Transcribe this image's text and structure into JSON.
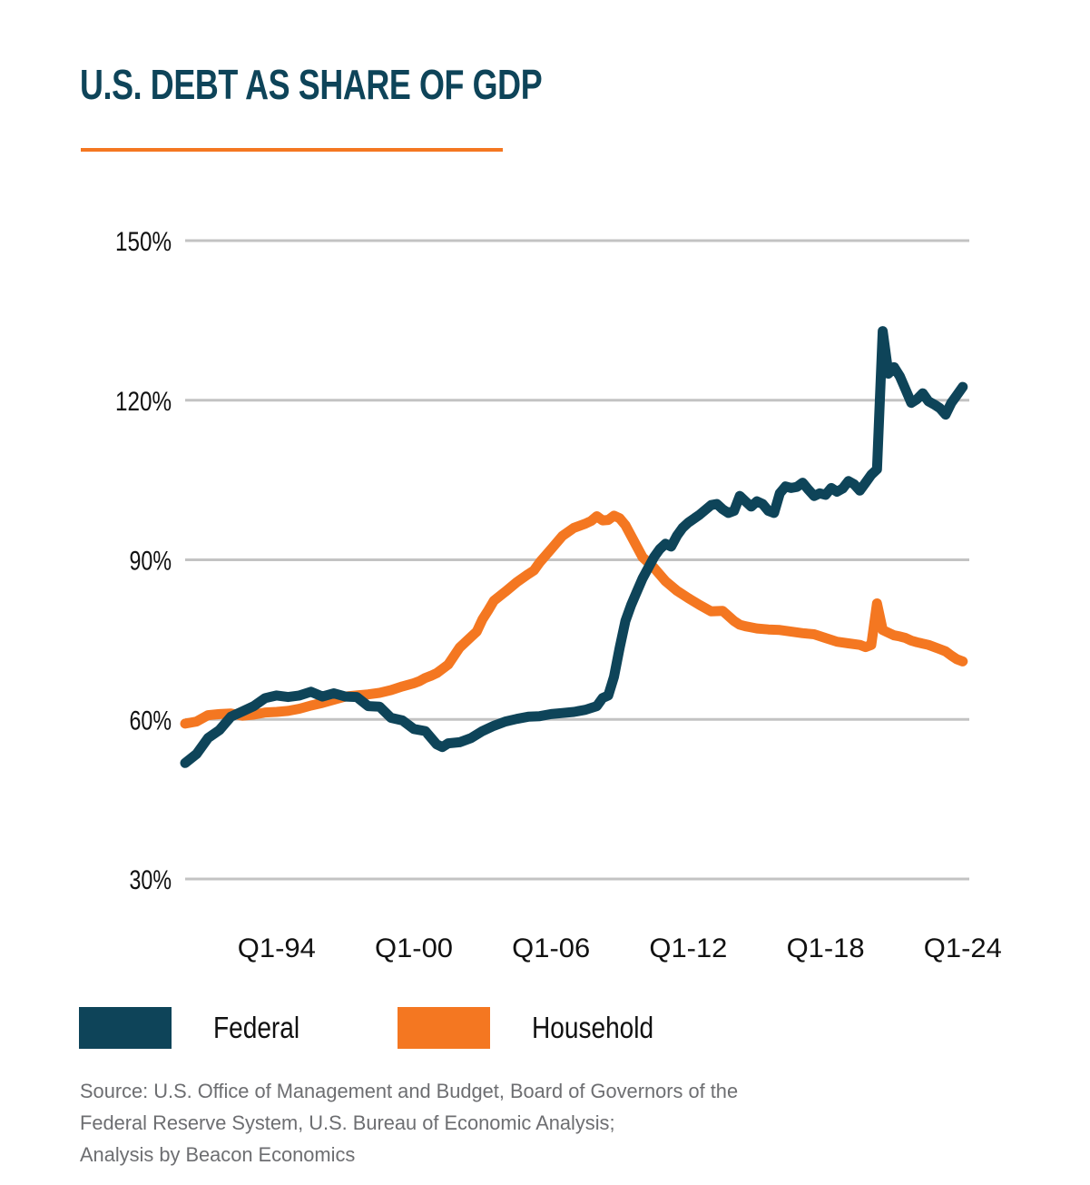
{
  "title": "U.S. DEBT AS SHARE OF GDP",
  "colors": {
    "federal": "#0e4459",
    "household": "#f47721",
    "title": "#0e4459",
    "rule": "#f47721",
    "grid": "#c3c3c3",
    "source_text": "#6d6e71"
  },
  "legend": [
    {
      "label": "Federal",
      "color": "#0e4459"
    },
    {
      "label": "Household",
      "color": "#f47721"
    }
  ],
  "source_lines": [
    "Source: U.S. Office of Management and Budget, Board of Governors of the",
    "Federal Reserve System, U.S. Bureau of Economic Analysis;",
    "Analysis by Beacon Economics"
  ],
  "chart_data": {
    "type": "line",
    "title": "U.S. DEBT AS SHARE OF GDP",
    "xlabel": "",
    "ylabel": "",
    "x_unit": "year (decimal, quarterly)",
    "xlim": [
      1990.0,
      2024.25
    ],
    "ylim": [
      30,
      150
    ],
    "y_ticks": [
      30,
      60,
      90,
      120,
      150
    ],
    "y_tick_labels": [
      "30%",
      "60%",
      "90%",
      "120%",
      "150%"
    ],
    "x_ticks": [
      1994,
      2000,
      2006,
      2012,
      2018,
      2024
    ],
    "x_tick_labels": [
      "Q1-94",
      "Q1-00",
      "Q1-06",
      "Q1-12",
      "Q1-18",
      "Q1-24"
    ],
    "grid": "horizontal",
    "legend_position": "bottom-left",
    "series": [
      {
        "name": "Federal",
        "color": "#0e4459",
        "x": [
          1990.0,
          1990.5,
          1991.0,
          1991.5,
          1992.0,
          1992.5,
          1993.0,
          1993.5,
          1994.0,
          1994.5,
          1995.0,
          1995.5,
          1996.0,
          1996.5,
          1997.0,
          1997.5,
          1998.0,
          1998.5,
          1999.0,
          1999.5,
          2000.0,
          2000.5,
          2001.0,
          2001.25,
          2001.5,
          2002.0,
          2002.5,
          2003.0,
          2003.5,
          2004.0,
          2004.5,
          2005.0,
          2005.5,
          2006.0,
          2006.5,
          2007.0,
          2007.5,
          2008.0,
          2008.25,
          2008.5,
          2008.75,
          2009.0,
          2009.25,
          2009.5,
          2009.75,
          2010.0,
          2010.25,
          2010.5,
          2010.75,
          2011.0,
          2011.25,
          2011.5,
          2011.75,
          2012.0,
          2012.5,
          2013.0,
          2013.25,
          2013.5,
          2013.75,
          2014.0,
          2014.25,
          2014.5,
          2014.75,
          2015.0,
          2015.25,
          2015.5,
          2015.75,
          2016.0,
          2016.25,
          2016.5,
          2016.75,
          2017.0,
          2017.25,
          2017.5,
          2017.75,
          2018.0,
          2018.25,
          2018.5,
          2018.75,
          2019.0,
          2019.25,
          2019.5,
          2019.75,
          2020.0,
          2020.25,
          2020.5,
          2020.75,
          2021.0,
          2021.25,
          2021.5,
          2021.75,
          2022.0,
          2022.25,
          2022.5,
          2022.75,
          2023.0,
          2023.25,
          2023.5,
          2023.75,
          2024.0
        ],
        "values": [
          51.8,
          53.5,
          56.5,
          58.0,
          60.5,
          61.5,
          62.5,
          64.0,
          64.5,
          64.2,
          64.5,
          65.2,
          64.3,
          64.9,
          64.3,
          64.2,
          62.5,
          62.4,
          60.3,
          59.8,
          58.2,
          57.8,
          55.3,
          54.8,
          55.5,
          55.7,
          56.5,
          57.8,
          58.8,
          59.6,
          60.1,
          60.5,
          60.6,
          61.0,
          61.2,
          61.4,
          61.8,
          62.5,
          64.0,
          64.5,
          68.0,
          73.5,
          78.5,
          81.5,
          84.0,
          86.5,
          88.5,
          90.5,
          92.0,
          93.0,
          92.5,
          94.5,
          96.0,
          97.0,
          98.5,
          100.3,
          100.5,
          99.5,
          98.8,
          99.2,
          102.0,
          101.0,
          100.0,
          101.0,
          100.5,
          99.2,
          98.8,
          102.5,
          103.8,
          103.5,
          103.7,
          104.5,
          103.2,
          102.0,
          102.5,
          102.2,
          103.5,
          102.8,
          103.4,
          104.8,
          104.2,
          103.0,
          104.5,
          106.0,
          107.0,
          133.0,
          125.0,
          126.2,
          124.5,
          122.0,
          119.5,
          120.2,
          121.3,
          119.8,
          119.2,
          118.5,
          117.3,
          119.5,
          121.0,
          122.5
        ]
      },
      {
        "name": "Household",
        "color": "#f47721",
        "x": [
          1990.0,
          1990.5,
          1991.0,
          1991.5,
          1992.0,
          1992.5,
          1993.0,
          1993.5,
          1994.0,
          1994.5,
          1995.0,
          1995.5,
          1996.0,
          1996.5,
          1997.0,
          1997.5,
          1998.0,
          1998.5,
          1999.0,
          1999.5,
          2000.0,
          2000.25,
          2000.5,
          2000.75,
          2001.0,
          2001.25,
          2001.5,
          2002.0,
          2002.5,
          2002.75,
          2003.0,
          2003.25,
          2003.5,
          2004.0,
          2004.5,
          2005.0,
          2005.25,
          2005.5,
          2006.0,
          2006.5,
          2007.0,
          2007.5,
          2007.75,
          2008.0,
          2008.25,
          2008.5,
          2008.75,
          2009.0,
          2009.25,
          2009.5,
          2009.75,
          2010.0,
          2010.5,
          2011.0,
          2011.5,
          2012.0,
          2012.5,
          2013.0,
          2013.5,
          2014.0,
          2014.25,
          2014.5,
          2014.75,
          2015.0,
          2015.5,
          2016.0,
          2016.5,
          2017.0,
          2017.5,
          2018.0,
          2018.5,
          2019.0,
          2019.5,
          2019.75,
          2020.0,
          2020.25,
          2020.5,
          2020.75,
          2021.0,
          2021.25,
          2021.5,
          2021.75,
          2022.0,
          2022.5,
          2023.0,
          2023.25,
          2023.5,
          2023.75,
          2024.0
        ],
        "values": [
          59.2,
          59.6,
          60.8,
          61.0,
          61.1,
          60.7,
          60.9,
          61.3,
          61.4,
          61.6,
          62.0,
          62.6,
          63.1,
          63.7,
          64.3,
          64.5,
          64.7,
          65.0,
          65.5,
          66.2,
          66.8,
          67.2,
          67.8,
          68.2,
          68.7,
          69.5,
          70.3,
          73.5,
          75.5,
          76.5,
          78.8,
          80.5,
          82.3,
          84.0,
          85.8,
          87.3,
          88.0,
          89.5,
          92.0,
          94.5,
          96.0,
          96.8,
          97.3,
          98.2,
          97.4,
          97.5,
          98.3,
          97.8,
          96.5,
          94.5,
          92.5,
          90.5,
          88.5,
          86.0,
          84.2,
          82.8,
          81.5,
          80.3,
          80.4,
          78.5,
          77.8,
          77.5,
          77.3,
          77.1,
          76.9,
          76.8,
          76.5,
          76.2,
          76.0,
          75.3,
          74.6,
          74.3,
          74.0,
          73.6,
          74.0,
          81.8,
          76.8,
          76.3,
          75.8,
          75.6,
          75.3,
          74.8,
          74.5,
          74.0,
          73.2,
          72.8,
          72.0,
          71.3,
          70.9
        ]
      }
    ]
  }
}
